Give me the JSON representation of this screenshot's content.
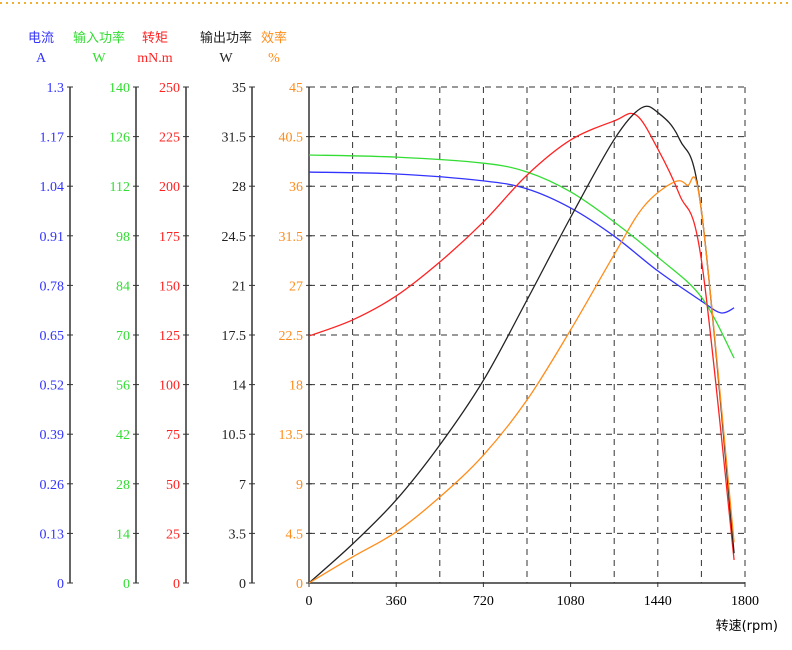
{
  "chart_data": {
    "type": "line",
    "xlabel": "转速(rpm)",
    "xlim": [
      0,
      1800
    ],
    "x_ticks": [
      "0",
      "360",
      "720",
      "1080",
      "1440",
      "1800"
    ],
    "grid": true,
    "axes": [
      {
        "name": "电流",
        "unit": "A",
        "color": "#3333ff",
        "max": 1.3,
        "ticks": [
          "0",
          "0.13",
          "0.26",
          "0.39",
          "0.52",
          "0.65",
          "0.78",
          "0.91",
          "1.04",
          "1.17",
          "1.3"
        ]
      },
      {
        "name": "输入功率",
        "unit": "W",
        "color": "#33dd33",
        "max": 140,
        "ticks": [
          "0",
          "14",
          "28",
          "42",
          "56",
          "70",
          "84",
          "98",
          "112",
          "126",
          "140"
        ]
      },
      {
        "name": "转矩",
        "unit": "mN.m",
        "color": "#ff2222",
        "max": 250,
        "ticks": [
          "0",
          "25",
          "50",
          "75",
          "100",
          "125",
          "150",
          "175",
          "200",
          "225",
          "250"
        ]
      },
      {
        "name": "输出功率",
        "unit": "W",
        "color": "#222222",
        "max": 35,
        "ticks": [
          "0",
          "3.5",
          "7",
          "10.5",
          "14",
          "17.5",
          "21",
          "24.5",
          "28",
          "31.5",
          "35"
        ]
      },
      {
        "name": "效率",
        "unit": "%",
        "color": "#ff8c1a",
        "max": 45,
        "ticks": [
          "0",
          "4.5",
          "9",
          "13.5",
          "18",
          "22.5",
          "27",
          "31.5",
          "36",
          "40.5",
          "45"
        ]
      }
    ],
    "series": [
      {
        "name": "电流",
        "axis": 0,
        "x": [
          0,
          360,
          720,
          900,
          1080,
          1260,
          1440,
          1620,
          1700,
          1755
        ],
        "y": [
          1.077,
          1.072,
          1.054,
          1.033,
          0.983,
          0.909,
          0.818,
          0.739,
          0.708,
          0.721
        ]
      },
      {
        "name": "输入功率",
        "axis": 1,
        "x": [
          0,
          360,
          720,
          900,
          1080,
          1260,
          1440,
          1620,
          1755
        ],
        "y": [
          120.8,
          120.2,
          118.5,
          116,
          110.4,
          101.9,
          92,
          80.7,
          63.5
        ]
      },
      {
        "name": "转矩",
        "axis": 2,
        "x": [
          0,
          180,
          360,
          540,
          720,
          900,
          1080,
          1260,
          1350,
          1440,
          1530,
          1620,
          1755
        ],
        "y": [
          124.5,
          132.6,
          144.7,
          161.8,
          182,
          205.6,
          223.3,
          232.9,
          235.9,
          218.8,
          195.6,
          162.8,
          11.6
        ]
      },
      {
        "name": "输出功率",
        "axis": 3,
        "x": [
          0,
          180,
          360,
          540,
          720,
          900,
          1080,
          1260,
          1370,
          1440,
          1530,
          1620,
          1755
        ],
        "y": [
          0,
          2.75,
          5.86,
          9.74,
          14.3,
          19.97,
          25.8,
          31.3,
          33.5,
          33.2,
          31.3,
          26.3,
          2.1
        ]
      },
      {
        "name": "效率",
        "axis": 4,
        "x": [
          0,
          180,
          360,
          540,
          720,
          900,
          1080,
          1260,
          1380,
          1500,
          1560,
          1620,
          1755
        ],
        "y": [
          0,
          2.36,
          4.63,
          7.8,
          11.6,
          16.6,
          22.96,
          29.8,
          34.1,
          36.3,
          36.1,
          33.8,
          3.7
        ]
      }
    ]
  }
}
